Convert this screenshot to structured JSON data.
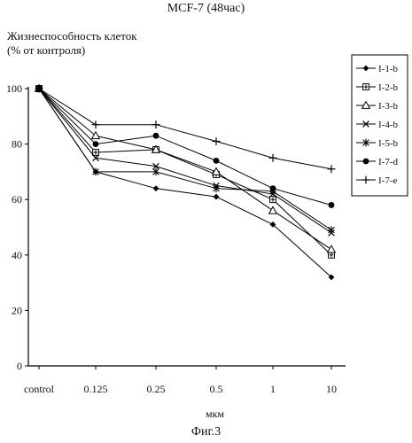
{
  "figure": {
    "title": "MCF-7 (48час)",
    "ylabel_line1": "Жизнеспособность клеток",
    "ylabel_line2": "(% от контроля)",
    "xlabel": "мкм",
    "caption": "Фиг.3"
  },
  "chart_data": {
    "type": "line",
    "title": "MCF-7 (48час)",
    "xlabel": "мкм",
    "ylabel": "Жизнеспособность клеток (% от контроля)",
    "categories": [
      "control",
      "0.125",
      "0.25",
      "0.5",
      "1",
      "10"
    ],
    "ylim": [
      0,
      100
    ],
    "yticks": [
      0,
      20,
      40,
      60,
      80,
      100
    ],
    "grid": false,
    "legend_position": "right",
    "series": [
      {
        "name": "I-1-b",
        "marker": "diamond",
        "values": [
          100,
          70,
          64,
          61,
          51,
          32
        ]
      },
      {
        "name": "I-2-b",
        "marker": "square-plus",
        "values": [
          100,
          77,
          78,
          69,
          60,
          40
        ]
      },
      {
        "name": "I-3-b",
        "marker": "triangle",
        "values": [
          100,
          83,
          78,
          70,
          56,
          42
        ]
      },
      {
        "name": "I-4-b",
        "marker": "x",
        "values": [
          100,
          75,
          72,
          65,
          62,
          48
        ]
      },
      {
        "name": "I-5-b",
        "marker": "star",
        "values": [
          100,
          70,
          70,
          64,
          63,
          49
        ]
      },
      {
        "name": "I-7-d",
        "marker": "circle",
        "values": [
          100,
          80,
          83,
          74,
          64,
          58
        ]
      },
      {
        "name": "I-7-e",
        "marker": "plus",
        "values": [
          100,
          87,
          87,
          81,
          75,
          71
        ]
      }
    ]
  }
}
